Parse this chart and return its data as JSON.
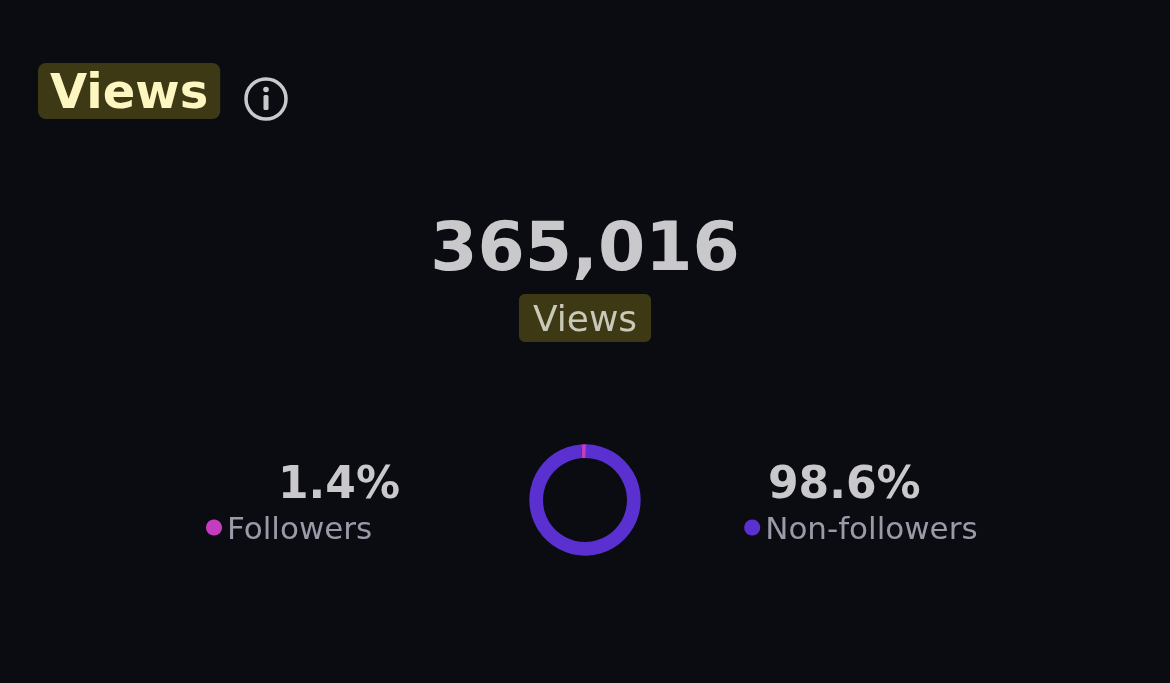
{
  "chart_data": {
    "type": "donut",
    "title": "Views",
    "annotations": [
      "365,016",
      "Views"
    ],
    "categories": [
      "Followers",
      "Non-followers"
    ],
    "values": [
      1.4,
      98.6
    ],
    "value_labels": [
      "1.4%",
      "98.6%"
    ],
    "colors": [
      "#c43cbf",
      "#5b30d0"
    ],
    "legend": "bottom"
  }
}
